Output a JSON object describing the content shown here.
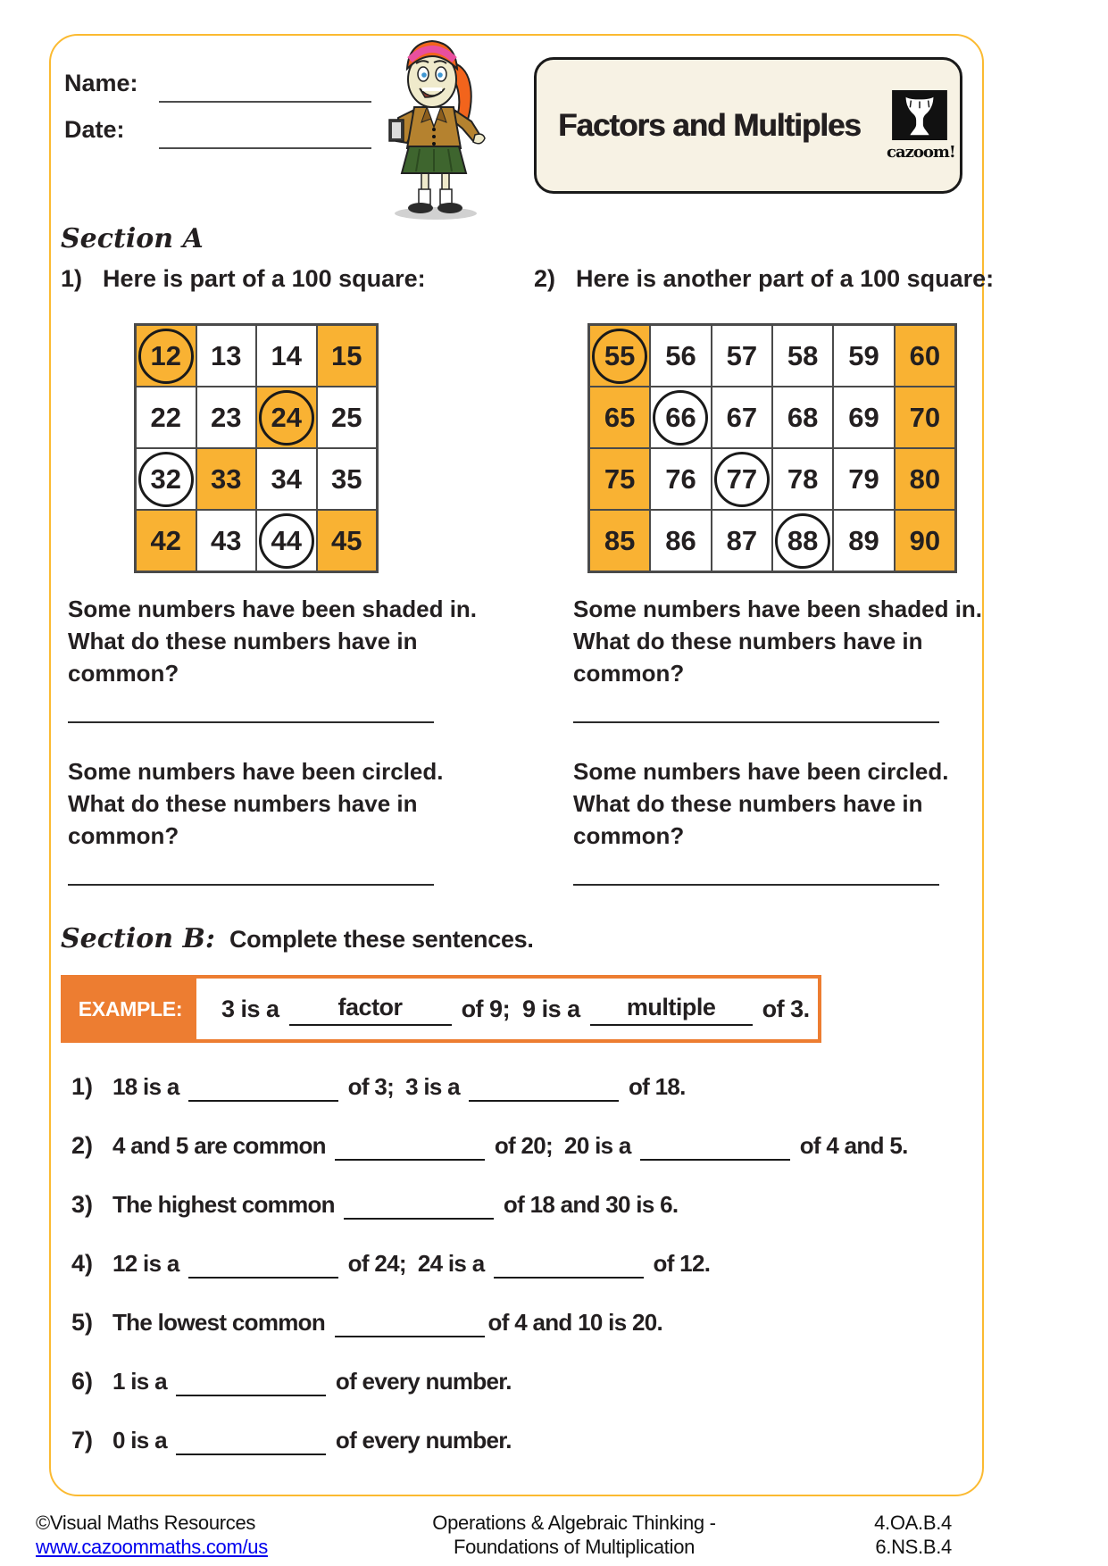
{
  "colors": {
    "page_border": "#FBBA31",
    "shaded_cell": "#F9B233",
    "example_orange": "#ED7D31",
    "link_blue": "#0000EE",
    "title_box_bg": "#F7F2E4",
    "grid_line": "#4A4A4A"
  },
  "header": {
    "name_label": "Name:",
    "date_label": "Date:",
    "title": "Factors and Multiples",
    "logo_text": "cazoom!"
  },
  "section_a": {
    "heading": "Section A",
    "shaded_question": "Some numbers have been shaded in.\nWhat do these numbers have in\ncommon?",
    "circled_question": "Some numbers have been circled.\nWhat do these numbers have in\ncommon?",
    "questions": [
      {
        "number": "1)",
        "prompt": "Here is part of a 100 square:",
        "grid": {
          "columns": 4,
          "cells": [
            {
              "value": "12",
              "shaded": true,
              "circled": true
            },
            {
              "value": "13",
              "shaded": false,
              "circled": false
            },
            {
              "value": "14",
              "shaded": false,
              "circled": false
            },
            {
              "value": "15",
              "shaded": true,
              "circled": false
            },
            {
              "value": "22",
              "shaded": false,
              "circled": false
            },
            {
              "value": "23",
              "shaded": false,
              "circled": false
            },
            {
              "value": "24",
              "shaded": true,
              "circled": true
            },
            {
              "value": "25",
              "shaded": false,
              "circled": false
            },
            {
              "value": "32",
              "shaded": false,
              "circled": true
            },
            {
              "value": "33",
              "shaded": true,
              "circled": false
            },
            {
              "value": "34",
              "shaded": false,
              "circled": false
            },
            {
              "value": "35",
              "shaded": false,
              "circled": false
            },
            {
              "value": "42",
              "shaded": true,
              "circled": false
            },
            {
              "value": "43",
              "shaded": false,
              "circled": false
            },
            {
              "value": "44",
              "shaded": false,
              "circled": true
            },
            {
              "value": "45",
              "shaded": true,
              "circled": false
            }
          ]
        }
      },
      {
        "number": "2)",
        "prompt": "Here is another part of a 100 square:",
        "grid": {
          "columns": 6,
          "cells": [
            {
              "value": "55",
              "shaded": true,
              "circled": true
            },
            {
              "value": "56",
              "shaded": false,
              "circled": false
            },
            {
              "value": "57",
              "shaded": false,
              "circled": false
            },
            {
              "value": "58",
              "shaded": false,
              "circled": false
            },
            {
              "value": "59",
              "shaded": false,
              "circled": false
            },
            {
              "value": "60",
              "shaded": true,
              "circled": false
            },
            {
              "value": "65",
              "shaded": true,
              "circled": false
            },
            {
              "value": "66",
              "shaded": false,
              "circled": true
            },
            {
              "value": "67",
              "shaded": false,
              "circled": false
            },
            {
              "value": "68",
              "shaded": false,
              "circled": false
            },
            {
              "value": "69",
              "shaded": false,
              "circled": false
            },
            {
              "value": "70",
              "shaded": true,
              "circled": false
            },
            {
              "value": "75",
              "shaded": true,
              "circled": false
            },
            {
              "value": "76",
              "shaded": false,
              "circled": false
            },
            {
              "value": "77",
              "shaded": false,
              "circled": true
            },
            {
              "value": "78",
              "shaded": false,
              "circled": false
            },
            {
              "value": "79",
              "shaded": false,
              "circled": false
            },
            {
              "value": "80",
              "shaded": true,
              "circled": false
            },
            {
              "value": "85",
              "shaded": true,
              "circled": false
            },
            {
              "value": "86",
              "shaded": false,
              "circled": false
            },
            {
              "value": "87",
              "shaded": false,
              "circled": false
            },
            {
              "value": "88",
              "shaded": false,
              "circled": true
            },
            {
              "value": "89",
              "shaded": false,
              "circled": false
            },
            {
              "value": "90",
              "shaded": true,
              "circled": false
            }
          ]
        }
      }
    ]
  },
  "section_b": {
    "heading": "Section B:",
    "instruction": "Complete these sentences.",
    "example": {
      "label": "EXAMPLE:",
      "parts": [
        {
          "text": "3 is a "
        },
        {
          "blank": "factor"
        },
        {
          "text": " of 9;  9 is a "
        },
        {
          "blank": "multiple"
        },
        {
          "text": " of 3."
        }
      ]
    },
    "sentences": [
      {
        "number": "1)",
        "parts": [
          {
            "text": "18 is a "
          },
          {
            "blank": ""
          },
          {
            "text": " of 3;  3 is a "
          },
          {
            "blank": ""
          },
          {
            "text": " of 18."
          }
        ]
      },
      {
        "number": "2)",
        "parts": [
          {
            "text": "4 and 5 are common "
          },
          {
            "blank": ""
          },
          {
            "text": " of 20;  20 is a "
          },
          {
            "blank": ""
          },
          {
            "text": " of 4 and 5."
          }
        ]
      },
      {
        "number": "3)",
        "parts": [
          {
            "text": "The highest common "
          },
          {
            "blank": ""
          },
          {
            "text": " of 18 and 30 is 6."
          }
        ]
      },
      {
        "number": "4)",
        "parts": [
          {
            "text": "12 is a "
          },
          {
            "blank": ""
          },
          {
            "text": " of 24;  24 is a "
          },
          {
            "blank": ""
          },
          {
            "text": " of 12."
          }
        ]
      },
      {
        "number": "5)",
        "parts": [
          {
            "text": "The lowest common "
          },
          {
            "blank": ""
          },
          {
            "text": "of 4 and 10 is 20."
          }
        ]
      },
      {
        "number": "6)",
        "parts": [
          {
            "text": "1 is a "
          },
          {
            "blank": ""
          },
          {
            "text": " of every number."
          }
        ]
      },
      {
        "number": "7)",
        "parts": [
          {
            "text": "0 is a "
          },
          {
            "blank": ""
          },
          {
            "text": " of every number."
          }
        ]
      }
    ]
  },
  "footer": {
    "copyright": "©Visual Maths Resources",
    "link": "www.cazoommaths.com/us",
    "center_line1": "Operations & Algebraic Thinking -",
    "center_line2": "Foundations of Multiplication",
    "standard1": "4.OA.B.4",
    "standard2": "6.NS.B.4"
  }
}
